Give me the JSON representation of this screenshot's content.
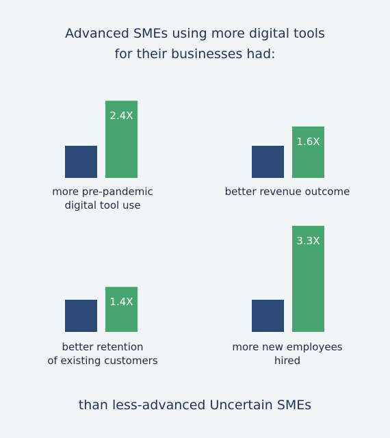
{
  "header": {
    "title_line1": "Advanced SMEs using more digital tools",
    "title_line2": "for their businesses had:"
  },
  "footer": {
    "text": "than less-advanced Uncertain SMEs"
  },
  "colors": {
    "baseline": "#2c4a77",
    "advanced": "#48a56f",
    "text": "#1f3158"
  },
  "chart_data": [
    {
      "type": "bar",
      "categories": [
        "more pre-pandemic digital tool use"
      ],
      "caption_lines": [
        "more pre-pandemic",
        "digital tool use"
      ],
      "series": [
        {
          "values": [
            1
          ]
        },
        {
          "values": [
            2.4
          ]
        }
      ],
      "data_label": "2.4X"
    },
    {
      "type": "bar",
      "categories": [
        "better revenue outcome"
      ],
      "caption_lines": [
        "better revenue outcome"
      ],
      "series": [
        {
          "values": [
            1
          ]
        },
        {
          "values": [
            1.6
          ]
        }
      ],
      "data_label": "1.6X"
    },
    {
      "type": "bar",
      "categories": [
        "better retention of existing customers"
      ],
      "caption_lines": [
        "better retention",
        "of existing customers"
      ],
      "series": [
        {
          "values": [
            1
          ]
        },
        {
          "values": [
            1.4
          ]
        }
      ],
      "data_label": "1.4X"
    },
    {
      "type": "bar",
      "categories": [
        "more new employees hired"
      ],
      "caption_lines": [
        "more new employees",
        "hired"
      ],
      "series": [
        {
          "values": [
            1
          ]
        },
        {
          "values": [
            3.3
          ]
        }
      ],
      "data_label": "3.3X"
    }
  ]
}
